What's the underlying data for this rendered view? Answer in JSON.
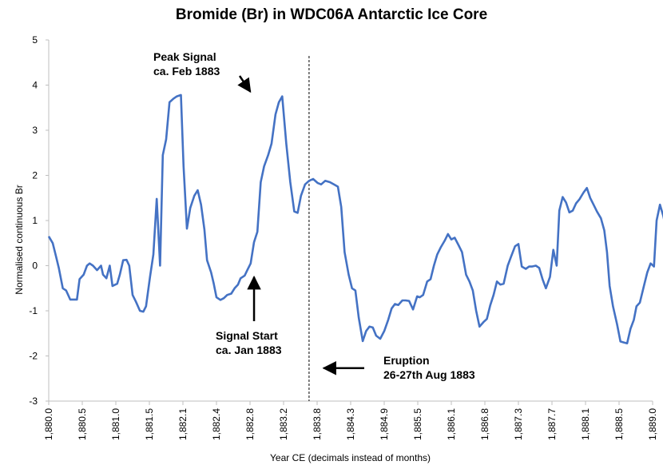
{
  "chart_data": {
    "type": "line",
    "title": "Bromide (Br) in WDC06A Antarctic Ice Core",
    "xlabel": "Year CE (decimals instead of months)",
    "ylabel": "Normalised continuous Br",
    "xlim": [
      1880.0,
      1889.0
    ],
    "ylim": [
      -3,
      5
    ],
    "yticks": [
      "5",
      "4",
      "3",
      "2",
      "1",
      "0",
      "-1",
      "-2",
      "-3"
    ],
    "xticks": [
      "1,880.0",
      "1,880.5",
      "1,881.0",
      "1,881.5",
      "1,882.1",
      "1,882.4",
      "1,882.8",
      "1,883.2",
      "1,883.8",
      "1,884.3",
      "1,884.9",
      "1,885.5",
      "1,886.1",
      "1,886.8",
      "1,887.3",
      "1,887.7",
      "1,888.1",
      "1,888.5",
      "1,889.0"
    ],
    "grid": false,
    "legend": "none",
    "series": [
      {
        "color": "#4472C4",
        "points": [
          [
            1880.0,
            0.65
          ],
          [
            1880.06,
            0.5
          ],
          [
            1880.11,
            0.2
          ],
          [
            1880.15,
            -0.05
          ],
          [
            1880.21,
            -0.5
          ],
          [
            1880.26,
            -0.55
          ],
          [
            1880.32,
            -0.75
          ],
          [
            1880.38,
            -0.75
          ],
          [
            1880.42,
            -0.75
          ],
          [
            1880.46,
            -0.3
          ],
          [
            1880.52,
            -0.2
          ],
          [
            1880.57,
            0.0
          ],
          [
            1880.61,
            0.05
          ],
          [
            1880.66,
            0.0
          ],
          [
            1880.72,
            -0.1
          ],
          [
            1880.78,
            0.0
          ],
          [
            1880.81,
            -0.2
          ],
          [
            1880.86,
            -0.28
          ],
          [
            1880.91,
            0.0
          ],
          [
            1880.95,
            -0.45
          ],
          [
            1881.02,
            -0.4
          ],
          [
            1881.06,
            -0.2
          ],
          [
            1881.11,
            0.12
          ],
          [
            1881.16,
            0.13
          ],
          [
            1881.2,
            0.0
          ],
          [
            1881.25,
            -0.65
          ],
          [
            1881.3,
            -0.8
          ],
          [
            1881.36,
            -1.0
          ],
          [
            1881.41,
            -1.02
          ],
          [
            1881.45,
            -0.9
          ],
          [
            1881.51,
            -0.25
          ],
          [
            1881.56,
            0.25
          ],
          [
            1881.61,
            1.48
          ],
          [
            1881.66,
            0.0
          ],
          [
            1881.7,
            2.45
          ],
          [
            1881.75,
            2.8
          ],
          [
            1881.8,
            3.62
          ],
          [
            1881.86,
            3.7
          ],
          [
            1881.91,
            3.75
          ],
          [
            1881.97,
            3.78
          ],
          [
            1882.01,
            2.2
          ],
          [
            1882.06,
            0.82
          ],
          [
            1882.11,
            1.28
          ],
          [
            1882.17,
            1.55
          ],
          [
            1882.22,
            1.67
          ],
          [
            1882.27,
            1.35
          ],
          [
            1882.32,
            0.8
          ],
          [
            1882.36,
            0.12
          ],
          [
            1882.42,
            -0.15
          ],
          [
            1882.46,
            -0.4
          ],
          [
            1882.5,
            -0.7
          ],
          [
            1882.56,
            -0.76
          ],
          [
            1882.61,
            -0.72
          ],
          [
            1882.66,
            -0.65
          ],
          [
            1882.72,
            -0.62
          ],
          [
            1882.77,
            -0.5
          ],
          [
            1882.82,
            -0.42
          ],
          [
            1882.86,
            -0.28
          ],
          [
            1882.92,
            -0.22
          ],
          [
            1882.96,
            -0.1
          ],
          [
            1883.01,
            0.05
          ],
          [
            1883.06,
            0.52
          ],
          [
            1883.11,
            0.75
          ],
          [
            1883.16,
            1.85
          ],
          [
            1883.21,
            2.2
          ],
          [
            1883.27,
            2.45
          ],
          [
            1883.32,
            2.7
          ],
          [
            1883.38,
            3.35
          ],
          [
            1883.43,
            3.62
          ],
          [
            1883.48,
            3.75
          ],
          [
            1883.54,
            2.7
          ],
          [
            1883.6,
            1.85
          ],
          [
            1883.66,
            1.2
          ],
          [
            1883.71,
            1.17
          ],
          [
            1883.76,
            1.55
          ],
          [
            1883.82,
            1.8
          ],
          [
            1883.88,
            1.88
          ],
          [
            1883.94,
            1.92
          ],
          [
            1884.01,
            1.83
          ],
          [
            1884.06,
            1.8
          ],
          [
            1884.12,
            1.88
          ],
          [
            1884.19,
            1.85
          ],
          [
            1884.25,
            1.8
          ],
          [
            1884.31,
            1.75
          ],
          [
            1884.36,
            1.3
          ],
          [
            1884.41,
            0.3
          ],
          [
            1884.47,
            -0.2
          ],
          [
            1884.52,
            -0.5
          ],
          [
            1884.57,
            -0.55
          ],
          [
            1884.62,
            -1.15
          ],
          [
            1884.68,
            -1.67
          ],
          [
            1884.73,
            -1.45
          ],
          [
            1884.78,
            -1.35
          ],
          [
            1884.83,
            -1.37
          ],
          [
            1884.88,
            -1.55
          ],
          [
            1884.94,
            -1.62
          ],
          [
            1885.0,
            -1.45
          ],
          [
            1885.06,
            -1.2
          ],
          [
            1885.11,
            -0.95
          ],
          [
            1885.16,
            -0.85
          ],
          [
            1885.21,
            -0.87
          ],
          [
            1885.27,
            -0.77
          ],
          [
            1885.32,
            -0.77
          ],
          [
            1885.37,
            -0.78
          ],
          [
            1885.43,
            -0.97
          ],
          [
            1885.49,
            -0.68
          ],
          [
            1885.53,
            -0.7
          ],
          [
            1885.58,
            -0.65
          ],
          [
            1885.64,
            -0.35
          ],
          [
            1885.69,
            -0.3
          ],
          [
            1885.74,
            0.0
          ],
          [
            1885.79,
            0.25
          ],
          [
            1885.84,
            0.4
          ],
          [
            1885.9,
            0.55
          ],
          [
            1885.95,
            0.7
          ],
          [
            1886.0,
            0.58
          ],
          [
            1886.05,
            0.62
          ],
          [
            1886.11,
            0.45
          ],
          [
            1886.16,
            0.3
          ],
          [
            1886.22,
            -0.2
          ],
          [
            1886.27,
            -0.35
          ],
          [
            1886.32,
            -0.55
          ],
          [
            1886.37,
            -1.0
          ],
          [
            1886.42,
            -1.35
          ],
          [
            1886.48,
            -1.25
          ],
          [
            1886.53,
            -1.18
          ],
          [
            1886.58,
            -0.88
          ],
          [
            1886.63,
            -0.65
          ],
          [
            1886.68,
            -0.35
          ],
          [
            1886.73,
            -0.42
          ],
          [
            1886.78,
            -0.4
          ],
          [
            1886.84,
            0.0
          ],
          [
            1886.89,
            0.2
          ],
          [
            1886.95,
            0.43
          ],
          [
            1887.0,
            0.48
          ],
          [
            1887.05,
            -0.02
          ],
          [
            1887.11,
            -0.07
          ],
          [
            1887.16,
            -0.02
          ],
          [
            1887.2,
            -0.02
          ],
          [
            1887.26,
            0.0
          ],
          [
            1887.31,
            -0.05
          ],
          [
            1887.36,
            -0.3
          ],
          [
            1887.41,
            -0.5
          ],
          [
            1887.47,
            -0.25
          ],
          [
            1887.52,
            0.35
          ],
          [
            1887.57,
            0.0
          ],
          [
            1887.61,
            1.22
          ],
          [
            1887.66,
            1.52
          ],
          [
            1887.71,
            1.4
          ],
          [
            1887.76,
            1.18
          ],
          [
            1887.81,
            1.22
          ],
          [
            1887.86,
            1.38
          ],
          [
            1887.91,
            1.47
          ],
          [
            1887.97,
            1.62
          ],
          [
            1888.02,
            1.72
          ],
          [
            1888.07,
            1.5
          ],
          [
            1888.12,
            1.35
          ],
          [
            1888.17,
            1.2
          ],
          [
            1888.23,
            1.05
          ],
          [
            1888.28,
            0.78
          ],
          [
            1888.32,
            0.3
          ],
          [
            1888.36,
            -0.45
          ],
          [
            1888.41,
            -0.9
          ],
          [
            1888.47,
            -1.3
          ],
          [
            1888.52,
            -1.68
          ],
          [
            1888.57,
            -1.7
          ],
          [
            1888.62,
            -1.72
          ],
          [
            1888.67,
            -1.4
          ],
          [
            1888.72,
            -1.2
          ],
          [
            1888.76,
            -0.9
          ],
          [
            1888.81,
            -0.82
          ],
          [
            1888.87,
            -0.45
          ],
          [
            1888.92,
            -0.15
          ],
          [
            1888.97,
            0.05
          ],
          [
            1889.02,
            -0.02
          ],
          [
            1889.06,
            1.0
          ],
          [
            1889.11,
            1.35
          ],
          [
            1889.16,
            1.1
          ],
          [
            1889.21,
            0.75
          ]
        ]
      }
    ],
    "eruption_line_x": 1883.88,
    "annotations": [
      {
        "lines": [
          "Peak Signal",
          "ca. Feb 1883"
        ],
        "arrow_to": [
          1883.48,
          3.75
        ]
      },
      {
        "lines": [
          "Signal Start",
          "ca. Jan 1883"
        ],
        "arrow_to": [
          1883.06,
          -0.18
        ]
      },
      {
        "lines": [
          "Eruption",
          "26-27th Aug 1883"
        ],
        "arrow_to": [
          1884.05,
          -2.27
        ]
      }
    ]
  }
}
